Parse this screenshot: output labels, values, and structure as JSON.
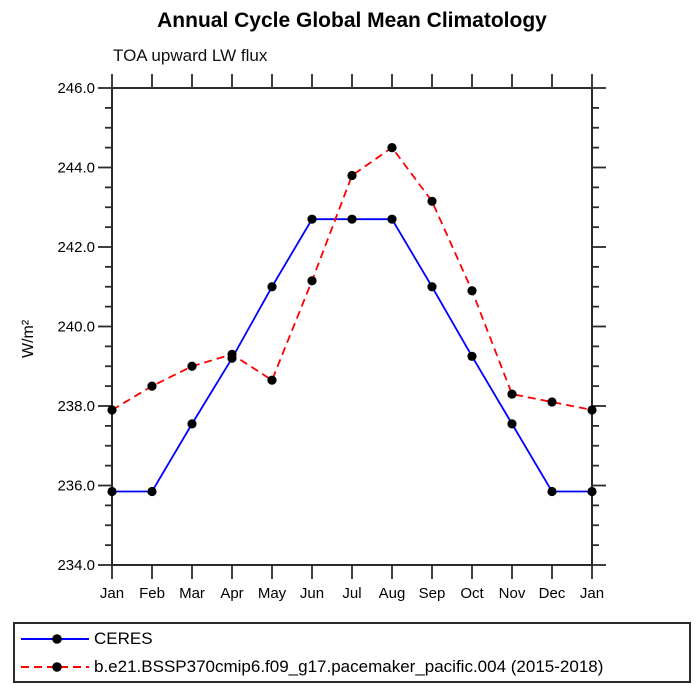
{
  "chart_data": {
    "type": "line",
    "title": "Annual Cycle Global Mean Climatology",
    "subtitle": "TOA upward LW flux",
    "ylabel": "W/m²",
    "xlabel": "",
    "x": [
      "Jan",
      "Feb",
      "Mar",
      "Apr",
      "May",
      "Jun",
      "Jul",
      "Aug",
      "Sep",
      "Oct",
      "Nov",
      "Dec",
      "Jan"
    ],
    "ylim": [
      234.0,
      246.0
    ],
    "ytick_labels": [
      "246.0",
      "244.0",
      "242.0",
      "240.0",
      "238.0",
      "236.0",
      "234.0"
    ],
    "ytick_major_step": 2.0,
    "ytick_minor_step": 0.5,
    "grid": false,
    "legend_position": "bottom",
    "axis_color": "#2b2b2b",
    "marker": "filled-circle",
    "marker_color": "#000000",
    "series": [
      {
        "name": "CERES",
        "color": "#0000ff",
        "line_style": "solid",
        "values": [
          235.85,
          235.85,
          237.55,
          239.2,
          241.0,
          242.7,
          242.7,
          242.7,
          241.0,
          239.25,
          237.55,
          235.85,
          235.85
        ]
      },
      {
        "name": "b.e21.BSSP370cmip6.f09_g17.pacemaker_pacific.004 (2015-2018)",
        "color": "#ff0000",
        "line_style": "dashed",
        "values": [
          237.9,
          238.5,
          239.0,
          239.3,
          238.65,
          241.15,
          243.8,
          244.5,
          243.15,
          240.9,
          238.3,
          238.1,
          237.9
        ]
      }
    ]
  }
}
